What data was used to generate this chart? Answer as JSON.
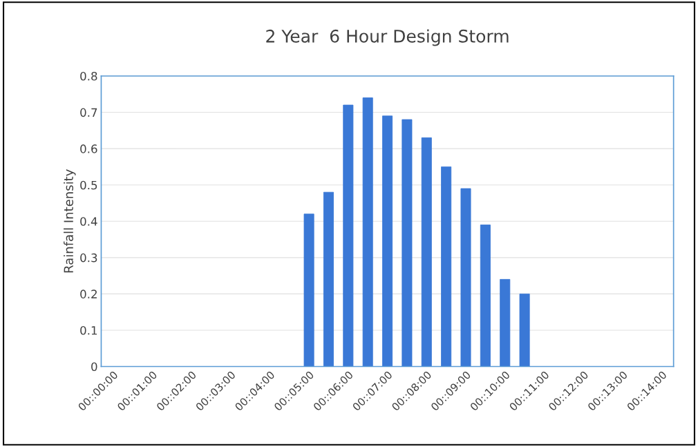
{
  "chart_data": {
    "type": "bar",
    "title": "2 Year  6 Hour Design Storm",
    "ylabel": "Rainfall Intensity",
    "categories": [
      "00::00:00",
      null,
      "00::01:00",
      null,
      "00::02:00",
      null,
      "00::03:00",
      null,
      "00::04:00",
      null,
      "00::05:00",
      null,
      "00::06:00",
      null,
      "00::07:00",
      null,
      "00::08:00",
      null,
      "00::09:00",
      null,
      "00::10:00",
      null,
      "00::11:00",
      null,
      "00::12:00",
      null,
      "00::13:00",
      null,
      "00::14:00"
    ],
    "values": [
      0,
      0,
      0,
      0,
      0,
      0,
      0,
      0,
      0,
      0,
      0.42,
      0.48,
      0.72,
      0.74,
      0.69,
      0.68,
      0.63,
      0.55,
      0.49,
      0.39,
      0.24,
      0.2,
      0,
      0,
      0,
      0,
      0,
      0,
      0
    ],
    "color": "#3a78d6",
    "ylim": [
      0,
      0.8
    ],
    "yticks": [
      0,
      0.1,
      0.2,
      0.3,
      0.4,
      0.5,
      0.6,
      0.7,
      0.8
    ],
    "grid": "y",
    "legend": false
  }
}
